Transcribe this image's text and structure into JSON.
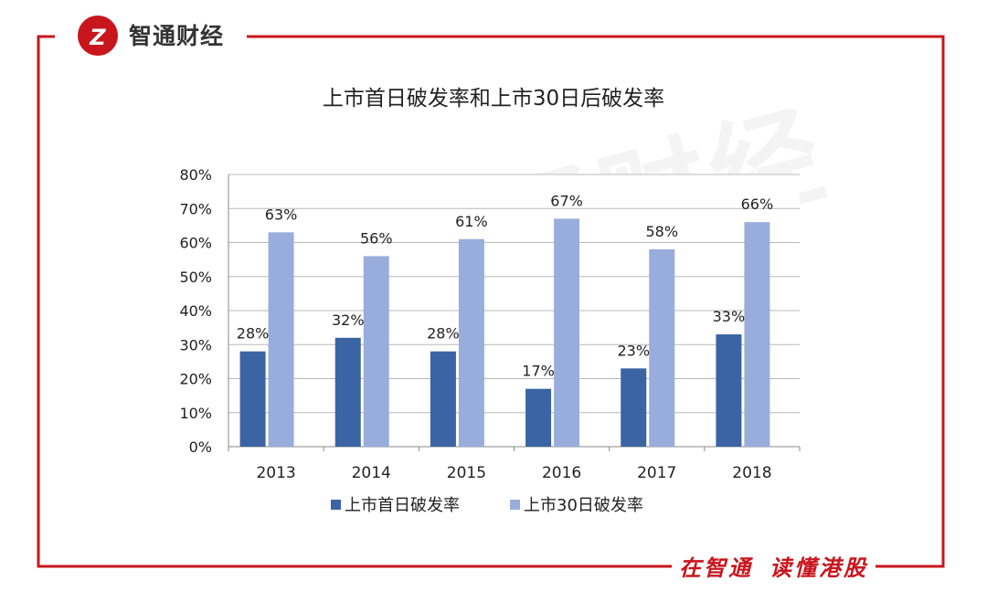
{
  "brand": {
    "name": "智通财经",
    "accent_color": "#c8161d",
    "logo_icon": "zt-logo-icon"
  },
  "footer": {
    "slogan_part1": "在智通",
    "slogan_part2": "读懂港股"
  },
  "chart_data": {
    "type": "bar",
    "title": "上市首日破发率和上市30日后破发率",
    "categories": [
      "2013",
      "2014",
      "2015",
      "2016",
      "2017",
      "2018"
    ],
    "series": [
      {
        "name": "上市首日破发率",
        "values": [
          28,
          32,
          28,
          17,
          23,
          33
        ],
        "labels": [
          "28%",
          "32%",
          "28%",
          "17%",
          "23%",
          "33%"
        ],
        "color": "#3a64a3"
      },
      {
        "name": "上市30日破发率",
        "values": [
          63,
          56,
          61,
          67,
          58,
          66
        ],
        "labels": [
          "63%",
          "56%",
          "61%",
          "67%",
          "58%",
          "66%"
        ],
        "color": "#98addb"
      }
    ],
    "ylim": [
      0,
      80
    ],
    "yticks": [
      "0%",
      "10%",
      "20%",
      "30%",
      "40%",
      "50%",
      "60%",
      "70%",
      "80%"
    ],
    "grid": true,
    "legend_position": "bottom"
  }
}
